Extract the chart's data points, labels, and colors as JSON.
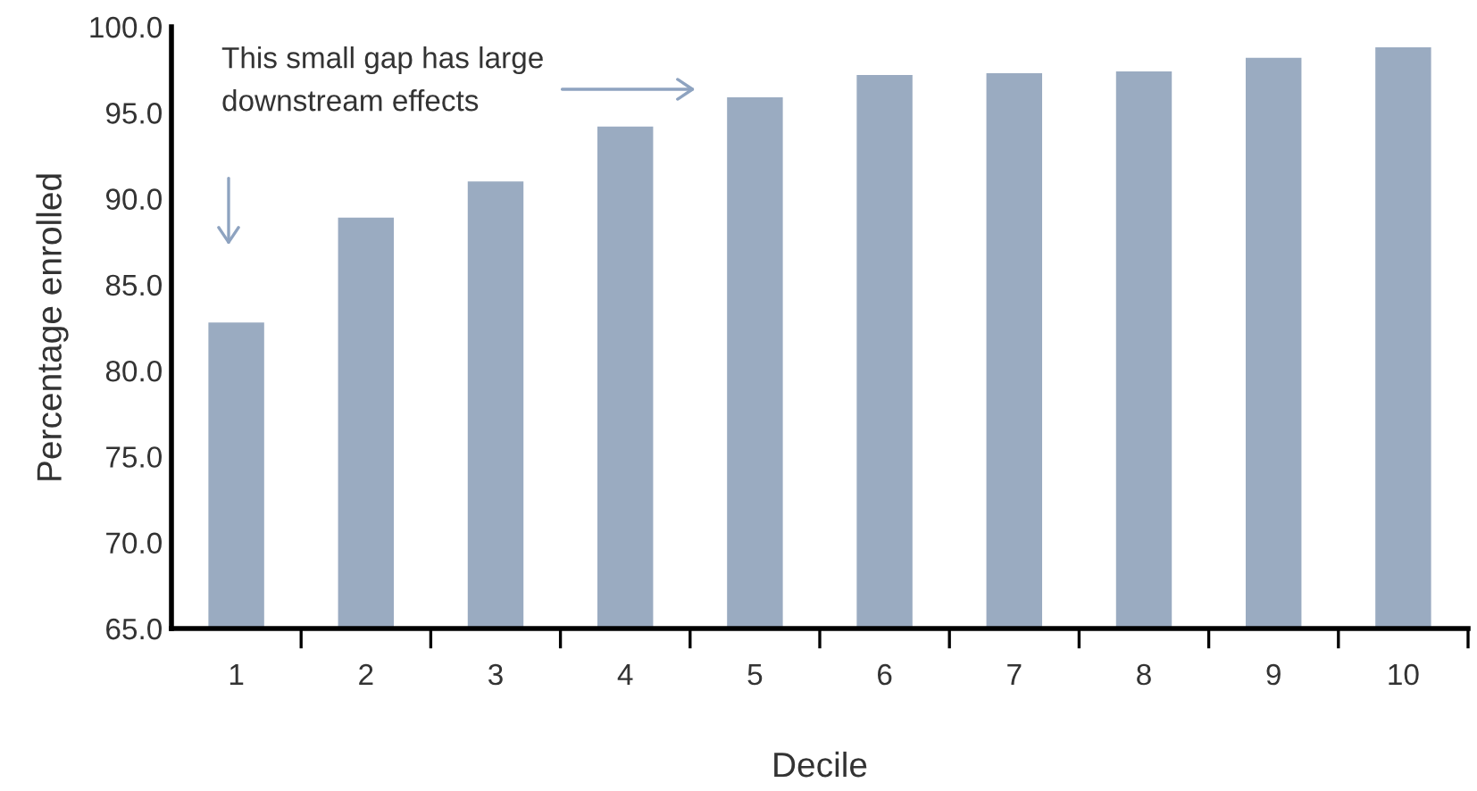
{
  "chart_data": {
    "type": "bar",
    "xlabel": "Decile",
    "ylabel": "Percentage enrolled",
    "categories": [
      "1",
      "2",
      "3",
      "4",
      "5",
      "6",
      "7",
      "8",
      "9",
      "10"
    ],
    "values": [
      82.8,
      88.9,
      91.0,
      94.2,
      95.9,
      97.2,
      97.3,
      97.4,
      98.2,
      98.8
    ],
    "color": "#9aabc1",
    "ylim": [
      65,
      100
    ],
    "yticks": [
      {
        "value": 65,
        "label": "65.0"
      },
      {
        "value": 70,
        "label": "70.0"
      },
      {
        "value": 75,
        "label": "75.0"
      },
      {
        "value": 80,
        "label": "80.0"
      },
      {
        "value": 85,
        "label": "85.0"
      },
      {
        "value": 90,
        "label": "90.0"
      },
      {
        "value": 95,
        "label": "95.0"
      },
      {
        "value": 100,
        "label": "100.0"
      }
    ],
    "annotations": [
      "This small gap has large\ndownstream effects"
    ],
    "grid": false,
    "legend": false
  }
}
